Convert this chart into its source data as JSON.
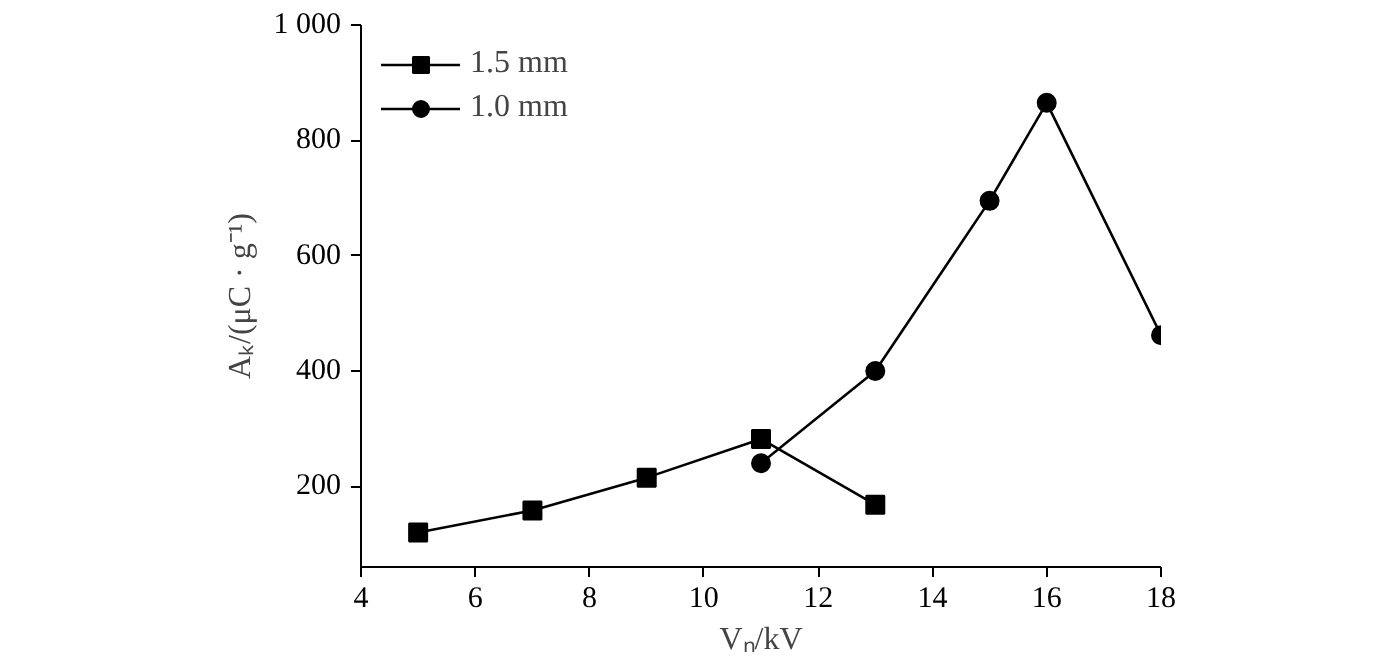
{
  "chart_data": {
    "type": "line",
    "xlabel": "Vₙ/kV",
    "ylabel": "Aₖ/(μC · g⁻¹)",
    "xlim": [
      4,
      18
    ],
    "ylim": [
      60,
      1000
    ],
    "xticks": [
      4,
      6,
      8,
      10,
      12,
      14,
      16,
      18
    ],
    "yticks": [
      200,
      400,
      600,
      800,
      {
        "value": 1000,
        "label": "1 000"
      }
    ],
    "grid": false,
    "legend": "top left",
    "line_style": "solid",
    "series": [
      {
        "name": "1.5 mm",
        "color": "#000000",
        "marker": "square",
        "x": [
          5,
          7,
          9,
          11,
          13
        ],
        "values": [
          120,
          158,
          215,
          282,
          168
        ]
      },
      {
        "name": "1.0 mm",
        "color": "#000000",
        "marker": "circle",
        "x": [
          11,
          13,
          15,
          16,
          18
        ],
        "values": [
          240,
          400,
          695,
          865,
          462
        ]
      }
    ]
  }
}
